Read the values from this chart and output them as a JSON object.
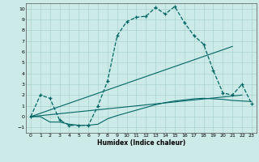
{
  "xlabel": "Humidex (Indice chaleur)",
  "xlim": [
    -0.5,
    23.5
  ],
  "ylim": [
    -1.5,
    10.5
  ],
  "xticks": [
    0,
    1,
    2,
    3,
    4,
    5,
    6,
    7,
    8,
    9,
    10,
    11,
    12,
    13,
    14,
    15,
    16,
    17,
    18,
    19,
    20,
    21,
    22,
    23
  ],
  "yticks": [
    -1,
    0,
    1,
    2,
    3,
    4,
    5,
    6,
    7,
    8,
    9,
    10
  ],
  "bg_color": "#cceae7",
  "grid_color": "#aad4d0",
  "line_color": "#006666",
  "line1_x": [
    0,
    1,
    2,
    3,
    4,
    5,
    6,
    7,
    8,
    9,
    10,
    11,
    12,
    13,
    14,
    15,
    16,
    17,
    18,
    19,
    20,
    21,
    22,
    23
  ],
  "line1_y": [
    0.0,
    2.0,
    1.7,
    -0.3,
    -0.8,
    -0.8,
    -0.8,
    1.0,
    3.3,
    7.5,
    8.8,
    9.2,
    9.3,
    10.1,
    9.5,
    10.2,
    8.7,
    7.5,
    6.7,
    4.3,
    2.2,
    2.0,
    3.0,
    1.2
  ],
  "line2_x": [
    0,
    1,
    2,
    3,
    4,
    5,
    6,
    7,
    8,
    9,
    10,
    11,
    12,
    13,
    14,
    15,
    16,
    17,
    18,
    19,
    20,
    21,
    22,
    23
  ],
  "line2_y": [
    0.0,
    0.0,
    -0.5,
    -0.5,
    -0.7,
    -0.8,
    -0.8,
    -0.7,
    -0.2,
    0.1,
    0.35,
    0.6,
    0.85,
    1.1,
    1.3,
    1.45,
    1.55,
    1.65,
    1.7,
    1.65,
    1.6,
    1.5,
    1.45,
    1.4
  ],
  "line3_x": [
    0,
    22
  ],
  "line3_y": [
    0.0,
    2.0
  ],
  "line4_x": [
    0,
    21
  ],
  "line4_y": [
    0.0,
    6.5
  ]
}
